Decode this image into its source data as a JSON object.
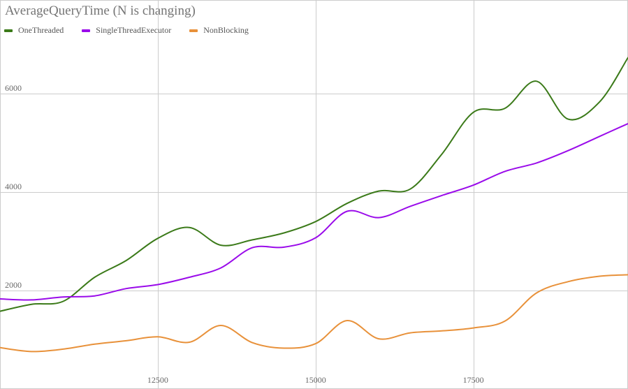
{
  "chart_data": {
    "type": "line",
    "title": "AverageQueryTime (N is changing)",
    "xlabel": "",
    "ylabel": "",
    "xlim": [
      10000,
      19950
    ],
    "ylim": [
      0,
      7900
    ],
    "x_ticks": [
      12500,
      15000,
      17500
    ],
    "y_ticks": [
      2000,
      4000,
      6000
    ],
    "grid": true,
    "legend_position": "top-left",
    "x": [
      10000,
      10500,
      11000,
      11500,
      12000,
      12500,
      13000,
      13500,
      14000,
      14500,
      15000,
      15500,
      16000,
      16500,
      17000,
      17500,
      18000,
      18500,
      19000,
      19500,
      19950
    ],
    "series": [
      {
        "name": "OneThreaded",
        "color": "#3b7a19",
        "values": [
          1580,
          1720,
          1780,
          2270,
          2610,
          3060,
          3280,
          2920,
          3030,
          3170,
          3400,
          3770,
          4020,
          4060,
          4770,
          5620,
          5700,
          6250,
          5480,
          5830,
          6730
        ]
      },
      {
        "name": "SingleThreadExecutor",
        "color": "#9a0bea",
        "values": [
          1830,
          1810,
          1870,
          1890,
          2040,
          2120,
          2270,
          2460,
          2870,
          2880,
          3070,
          3610,
          3480,
          3710,
          3930,
          4140,
          4420,
          4590,
          4840,
          5130,
          5390
        ]
      },
      {
        "name": "NonBlocking",
        "color": "#e8913a",
        "values": [
          840,
          760,
          810,
          910,
          980,
          1060,
          950,
          1290,
          940,
          830,
          920,
          1390,
          1020,
          1140,
          1180,
          1240,
          1380,
          1950,
          2180,
          2290,
          2320
        ]
      }
    ]
  }
}
